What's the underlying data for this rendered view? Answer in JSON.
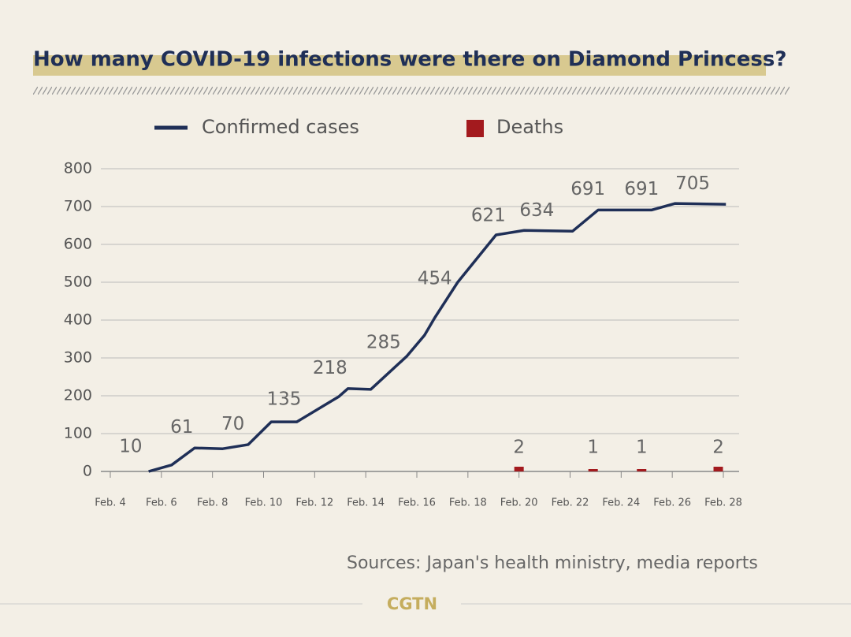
{
  "chart_data": {
    "type": "line",
    "title": "How many COVID-19 infections were there on Diamond Princess?",
    "source": "Sources: Japan's health ministry, media reports",
    "brand": "CGTN",
    "ylim": [
      0,
      800
    ],
    "yticks": [
      0,
      100,
      200,
      300,
      400,
      500,
      600,
      700,
      800
    ],
    "xlim": [
      4,
      28
    ],
    "xticks": [
      {
        "value": 4,
        "label": "Feb. 4"
      },
      {
        "value": 6,
        "label": "Feb. 6"
      },
      {
        "value": 8,
        "label": "Feb. 8"
      },
      {
        "value": 10,
        "label": "Feb. 10"
      },
      {
        "value": 12,
        "label": "Feb. 12"
      },
      {
        "value": 14,
        "label": "Feb. 14"
      },
      {
        "value": 16,
        "label": "Feb. 16"
      },
      {
        "value": 18,
        "label": "Feb. 18"
      },
      {
        "value": 20,
        "label": "Feb. 20"
      },
      {
        "value": 22,
        "label": "Feb. 22"
      },
      {
        "value": 24,
        "label": "Feb. 24"
      },
      {
        "value": 26,
        "label": "Feb. 26"
      },
      {
        "value": 28,
        "label": "Feb. 28"
      }
    ],
    "grid": true,
    "series": [
      {
        "name": "Confirmed cases",
        "color": "#1f2f57",
        "x": [
          5.5,
          6.4,
          7.3,
          8.4,
          9.4,
          10.3,
          11.3,
          12.95,
          13.3,
          14.2,
          15.6,
          16.3,
          16.7,
          17.6,
          19.1,
          20.2,
          22.1,
          23.1,
          25.2,
          26.1,
          28.1
        ],
        "values": [
          0,
          17,
          62,
          60,
          71,
          131,
          131,
          198,
          219,
          217,
          304,
          360,
          406,
          500,
          625,
          637,
          635,
          691,
          691,
          708,
          706
        ]
      },
      {
        "name": "Deaths",
        "color": "#a31a1e",
        "kind": "bar",
        "x": [
          20,
          22.9,
          24.8,
          27.8
        ],
        "values": [
          2,
          1,
          1,
          2
        ]
      }
    ],
    "data_labels": {
      "x": [
        4.8,
        6.8,
        8.8,
        10.8,
        12.6,
        14.7,
        16.7,
        18.8,
        20.7,
        22.7,
        24.8,
        26.8
      ],
      "values": [
        10,
        61,
        70,
        135,
        218,
        285,
        454,
        621,
        634,
        691,
        691,
        705
      ]
    }
  }
}
